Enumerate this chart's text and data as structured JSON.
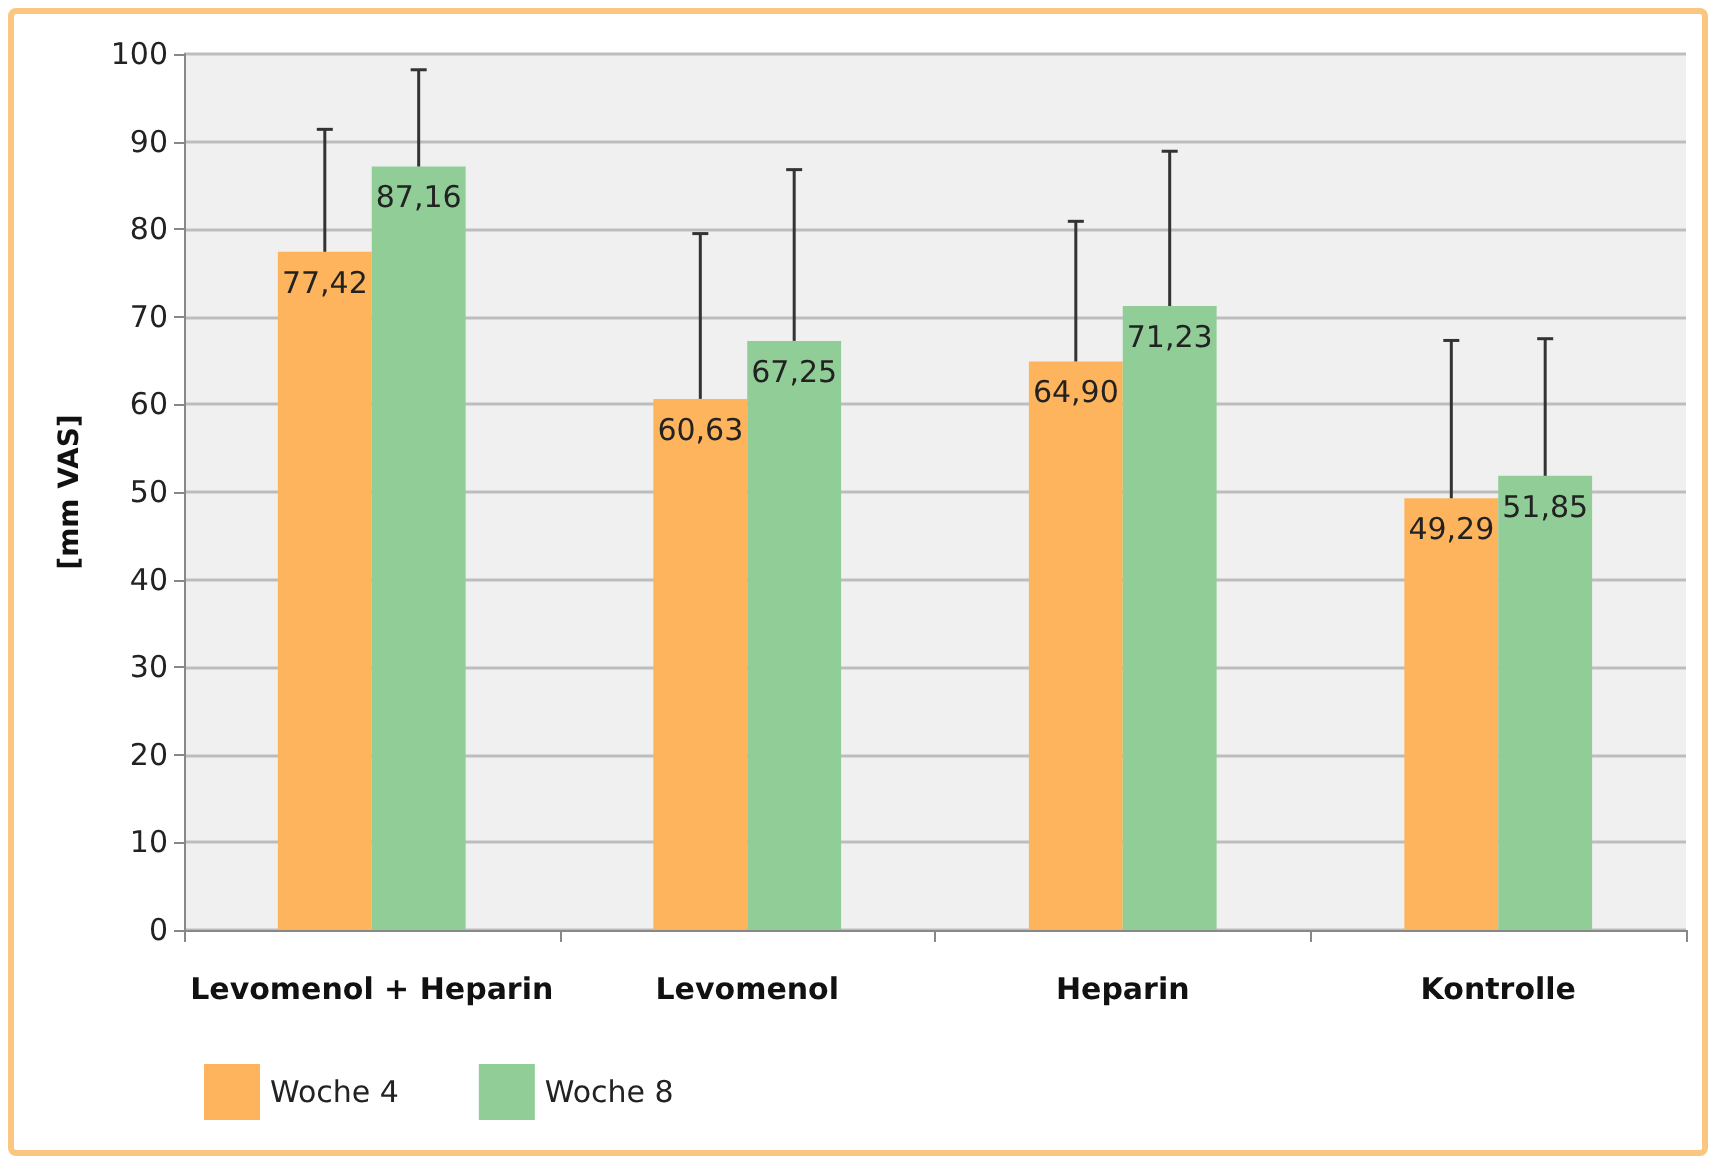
{
  "chart_data": {
    "type": "bar",
    "ylabel": "[mm VAS]",
    "categories": [
      "Levomenol + Heparin",
      "Levomenol",
      "Heparin",
      "Kontrolle"
    ],
    "series": [
      {
        "name": "Woche 4",
        "color": "#fdb45c",
        "values": [
          77.42,
          60.63,
          64.9,
          49.29
        ],
        "value_labels": [
          "77,42",
          "60,63",
          "64,90",
          "49,29"
        ],
        "errors": [
          [
            77.42,
            91.4
          ],
          [
            60.63,
            79.5
          ],
          [
            64.9,
            80.9
          ],
          [
            49.29,
            67.3
          ]
        ]
      },
      {
        "name": "Woche 8",
        "color": "#90cd97",
        "values": [
          87.16,
          67.25,
          71.23,
          51.85
        ],
        "value_labels": [
          "87,16",
          "67,25",
          "71,23",
          "51,85"
        ],
        "errors": [
          [
            87.16,
            98.2
          ],
          [
            67.25,
            86.8
          ],
          [
            71.23,
            88.9
          ],
          [
            51.85,
            67.5
          ]
        ]
      }
    ],
    "ylim": [
      0,
      100
    ],
    "yticks": [
      0,
      10,
      20,
      30,
      40,
      50,
      60,
      70,
      80,
      90,
      100
    ],
    "grid": "y",
    "legend": "bottom left"
  }
}
